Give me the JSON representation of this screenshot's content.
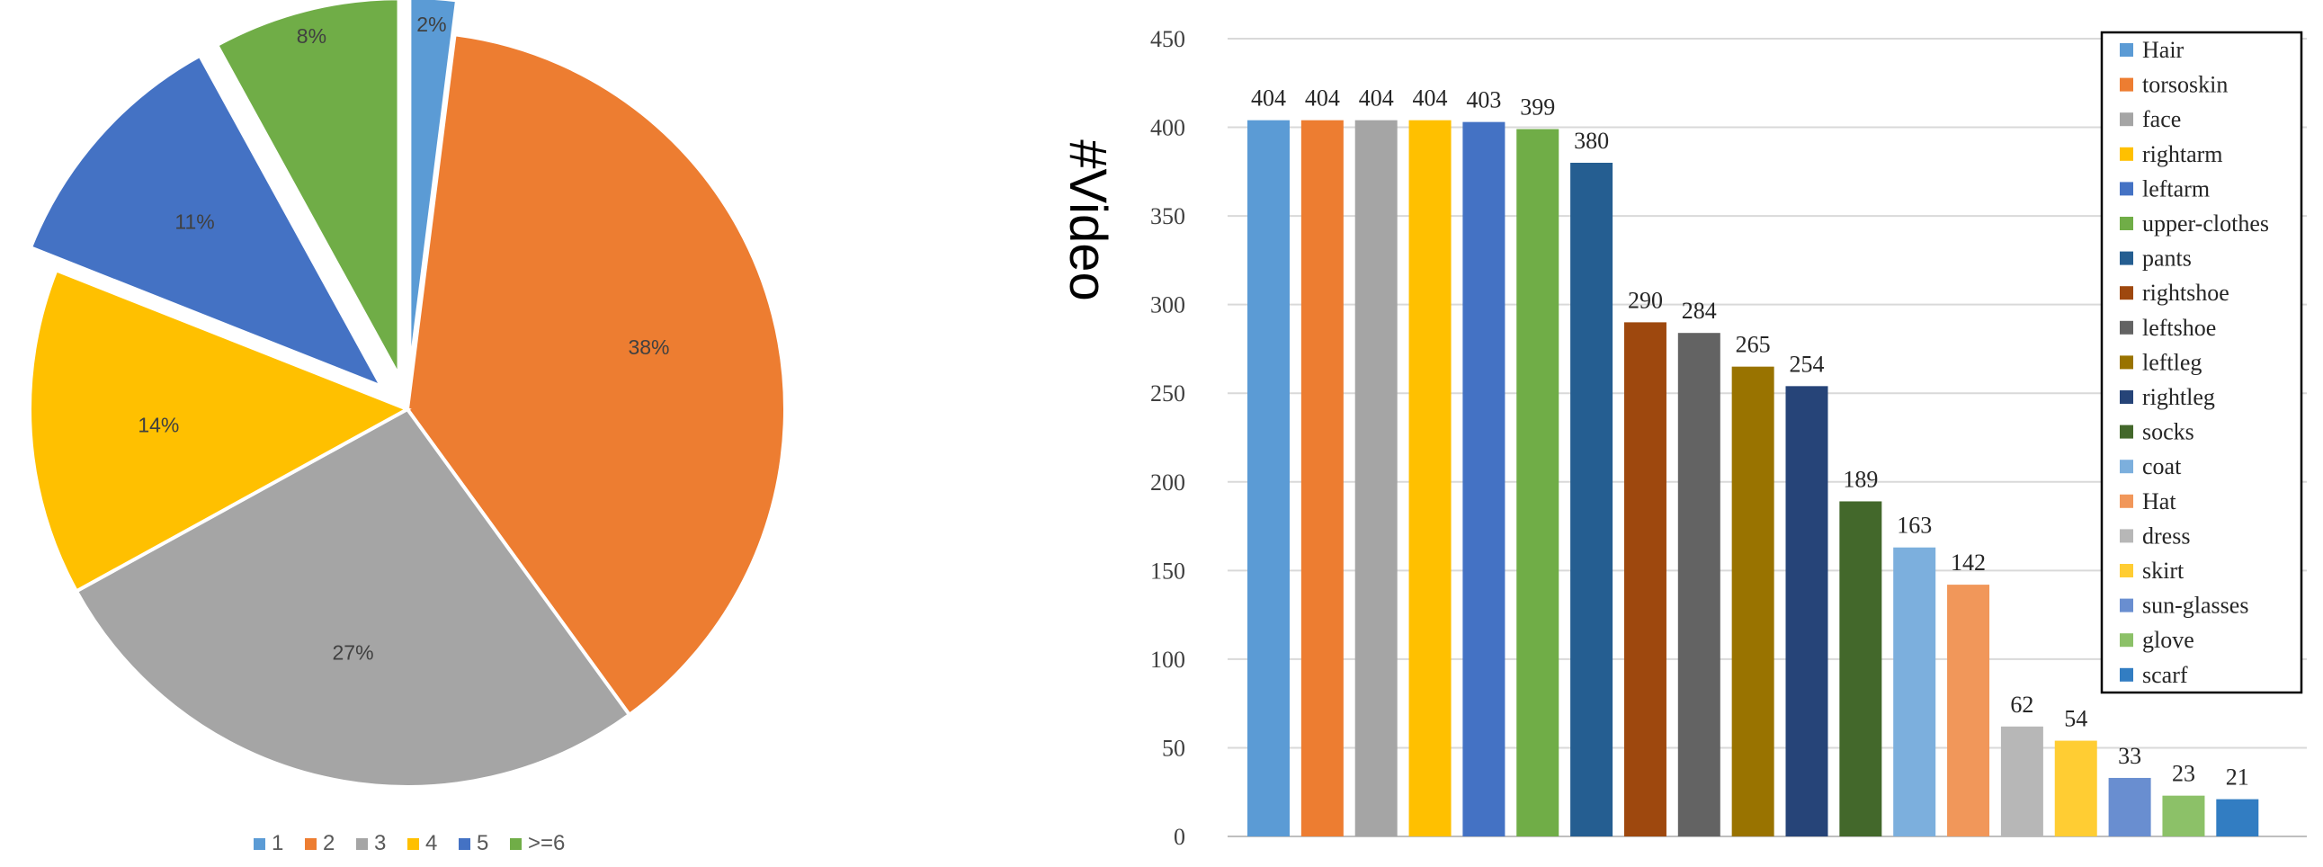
{
  "chart_data": [
    {
      "type": "pie",
      "slices": [
        {
          "label": "1",
          "value": 2,
          "value_label": "2%",
          "color": "#5b9bd5",
          "exploded": true
        },
        {
          "label": "2",
          "value": 38,
          "value_label": "38%",
          "color": "#ed7d31",
          "exploded": false
        },
        {
          "label": "3",
          "value": 27,
          "value_label": "27%",
          "color": "#a5a5a5",
          "exploded": false
        },
        {
          "label": "4",
          "value": 14,
          "value_label": "14%",
          "color": "#ffc000",
          "exploded": false
        },
        {
          "label": "5",
          "value": 11,
          "value_label": "11%",
          "color": "#4472c4",
          "exploded": true
        },
        {
          "label": ">=6",
          "value": 8,
          "value_label": "8%",
          "color": "#70ad47",
          "exploded": true
        }
      ],
      "legend_position": "bottom"
    },
    {
      "type": "bar",
      "ylabel": "#Video",
      "ylim": [
        0,
        450
      ],
      "yticks": [
        0,
        50,
        100,
        150,
        200,
        250,
        300,
        350,
        400,
        450
      ],
      "grid": true,
      "legend_position": "top-right",
      "series": [
        {
          "name": "Hair",
          "value": 404,
          "color": "#5b9bd5"
        },
        {
          "name": "torsoskin",
          "value": 404,
          "color": "#ed7d31"
        },
        {
          "name": "face",
          "value": 404,
          "color": "#a5a5a5"
        },
        {
          "name": "rightarm",
          "value": 404,
          "color": "#ffc000"
        },
        {
          "name": "leftarm",
          "value": 403,
          "color": "#4472c4"
        },
        {
          "name": "upper-clothes",
          "value": 399,
          "color": "#70ad47"
        },
        {
          "name": "pants",
          "value": 380,
          "color": "#255e91"
        },
        {
          "name": "rightshoe",
          "value": 290,
          "color": "#9e480e"
        },
        {
          "name": "leftshoe",
          "value": 284,
          "color": "#636363"
        },
        {
          "name": "leftleg",
          "value": 265,
          "color": "#997300"
        },
        {
          "name": "rightleg",
          "value": 254,
          "color": "#264478"
        },
        {
          "name": "socks",
          "value": 189,
          "color": "#43682b"
        },
        {
          "name": "coat",
          "value": 163,
          "color": "#7cafdd"
        },
        {
          "name": "Hat",
          "value": 142,
          "color": "#f1975a"
        },
        {
          "name": "dress",
          "value": 62,
          "color": "#b7b7b7"
        },
        {
          "name": "skirt",
          "value": 54,
          "color": "#ffcd33"
        },
        {
          "name": "sun-glasses",
          "value": 33,
          "color": "#698ed0"
        },
        {
          "name": "glove",
          "value": 23,
          "color": "#8cc168"
        },
        {
          "name": "scarf",
          "value": 21,
          "color": "#327dc2"
        }
      ]
    }
  ]
}
